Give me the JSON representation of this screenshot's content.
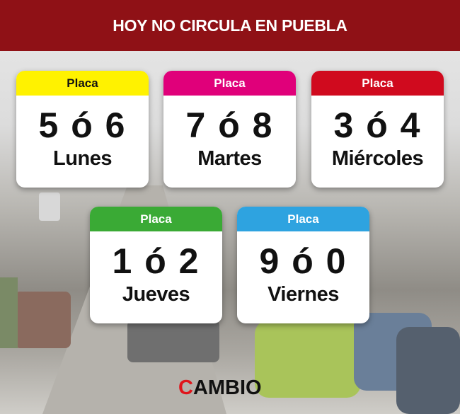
{
  "header": {
    "title": "HOY NO CIRCULA EN PUEBLA"
  },
  "colors": {
    "header": "#8f1116",
    "lunes": "#fff200",
    "martes": "#e0007a",
    "miercoles": "#d00a1e",
    "jueves": "#3aaa35",
    "viernes": "#2ea3e0"
  },
  "cards": [
    {
      "label": "Placa",
      "plates": "5 ó 6",
      "day": "Lunes"
    },
    {
      "label": "Placa",
      "plates": "7 ó 8",
      "day": "Martes"
    },
    {
      "label": "Placa",
      "plates": "3 ó 4",
      "day": "Miércoles"
    },
    {
      "label": "Placa",
      "plates": "1 ó 2",
      "day": "Jueves"
    },
    {
      "label": "Placa",
      "plates": "9 ó 0",
      "day": "Viernes"
    }
  ],
  "logo": {
    "first_letter": "C",
    "rest": "AMBIO"
  }
}
